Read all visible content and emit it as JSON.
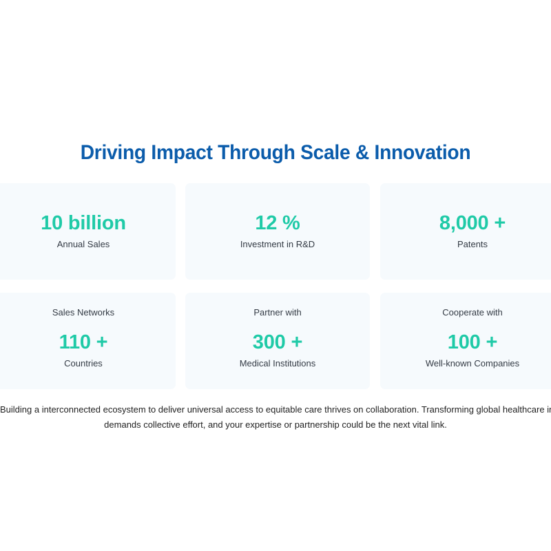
{
  "section": {
    "heading": "Driving Impact Through Scale & Innovation"
  },
  "stats_row1": [
    {
      "value": "10 billion",
      "label": "Annual Sales"
    },
    {
      "value": "12 %",
      "label": "Investment in R&D"
    },
    {
      "value": "8,000 +",
      "label": "Patents"
    }
  ],
  "stats_row2": [
    {
      "top_label": "Sales Networks",
      "value": "110 +",
      "label": "Countries"
    },
    {
      "top_label": "Partner with",
      "value": "300 +",
      "label": "Medical Institutions"
    },
    {
      "top_label": "Cooperate with",
      "value": "100 +",
      "label": "Well-known Companies"
    }
  ],
  "description": {
    "line1": "Building a interconnected ecosystem to deliver universal access to equitable care thrives on collaboration. Transforming global healthcare into a truly inclusive syste",
    "line2": "demands collective effort, and your expertise or partnership could be the next vital link."
  },
  "colors": {
    "heading": "#0b5cab",
    "accent": "#1fcaa7",
    "card_bg": "#f6fafd"
  }
}
